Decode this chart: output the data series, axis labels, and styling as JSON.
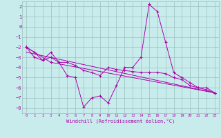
{
  "title": "",
  "xlabel": "Windchill (Refroidissement éolien,°C)",
  "ylabel": "",
  "bg_color": "#c8ecec",
  "grid_color": "#9bbdbd",
  "line_color": "#aa00aa",
  "xlim": [
    -0.5,
    23.5
  ],
  "ylim": [
    -8.5,
    2.5
  ],
  "xticks": [
    0,
    1,
    2,
    3,
    4,
    5,
    6,
    7,
    8,
    9,
    10,
    11,
    12,
    13,
    14,
    15,
    16,
    17,
    18,
    19,
    20,
    21,
    22,
    23
  ],
  "yticks": [
    -8,
    -7,
    -6,
    -5,
    -4,
    -3,
    -2,
    -1,
    0,
    1,
    2
  ],
  "line1_x": [
    0,
    1,
    2,
    3,
    4,
    5,
    6,
    7,
    8,
    9,
    10,
    11,
    12,
    13,
    14,
    15,
    16,
    17,
    18,
    19,
    20,
    21,
    22,
    23
  ],
  "line1_y": [
    -2.0,
    -2.5,
    -3.3,
    -2.5,
    -3.5,
    -4.8,
    -5.0,
    -7.9,
    -7.0,
    -6.8,
    -7.5,
    -5.8,
    -4.0,
    -4.0,
    -3.0,
    2.2,
    1.5,
    -1.5,
    -4.5,
    -5.0,
    -5.5,
    -6.0,
    -6.0,
    -6.5
  ],
  "line2_x": [
    0,
    1,
    2,
    3,
    4,
    5,
    6,
    7,
    8,
    9,
    10,
    11,
    12,
    13,
    14,
    15,
    16,
    17,
    18,
    19,
    20,
    21,
    22,
    23
  ],
  "line2_y": [
    -2.0,
    -3.0,
    -3.3,
    -3.0,
    -3.5,
    -3.5,
    -3.8,
    -4.3,
    -4.5,
    -4.8,
    -4.0,
    -4.2,
    -4.3,
    -4.4,
    -4.5,
    -4.5,
    -4.5,
    -4.6,
    -5.0,
    -5.2,
    -5.8,
    -6.0,
    -6.2,
    -6.5
  ],
  "line3_x": [
    0,
    3,
    23
  ],
  "line3_y": [
    -2.0,
    -3.5,
    -6.5
  ],
  "line4_x": [
    0,
    23
  ],
  "line4_y": [
    -2.5,
    -6.5
  ],
  "figsize": [
    3.2,
    2.0
  ],
  "dpi": 100
}
